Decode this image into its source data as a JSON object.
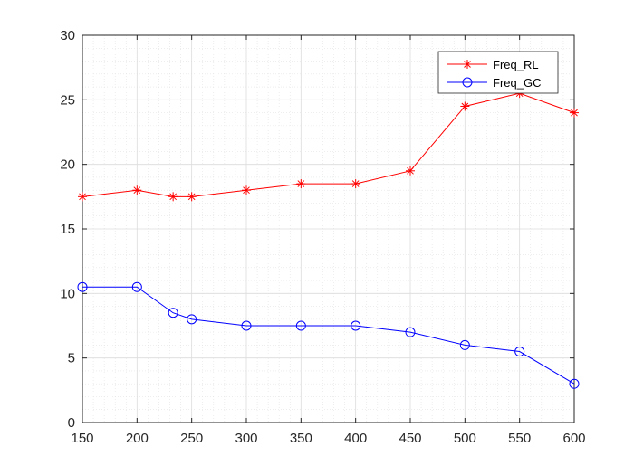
{
  "chart_data": {
    "type": "line",
    "title": "",
    "xlabel": "",
    "ylabel": "",
    "xlim": [
      150,
      600
    ],
    "ylim": [
      0,
      30
    ],
    "xticks": [
      150,
      200,
      250,
      300,
      350,
      400,
      450,
      500,
      550,
      600
    ],
    "yticks": [
      0,
      5,
      10,
      15,
      20,
      25,
      30
    ],
    "grid": true,
    "minor_grid": true,
    "legend_position": "top-right",
    "series": [
      {
        "name": "Freq_RL",
        "color": "#ff0000",
        "marker": "asterisk",
        "x": [
          150,
          200,
          233,
          250,
          300,
          350,
          400,
          450,
          500,
          550,
          600
        ],
        "y": [
          17.5,
          18,
          17.5,
          17.5,
          18,
          18.5,
          18.5,
          19.5,
          24.5,
          25.5,
          24
        ]
      },
      {
        "name": "Freq_GC",
        "color": "#0000ff",
        "marker": "circle",
        "x": [
          150,
          200,
          233,
          250,
          300,
          350,
          400,
          450,
          500,
          550,
          600
        ],
        "y": [
          10.5,
          10.5,
          8.5,
          8,
          7.5,
          7.5,
          7.5,
          7,
          6,
          5.5,
          3
        ]
      }
    ]
  }
}
